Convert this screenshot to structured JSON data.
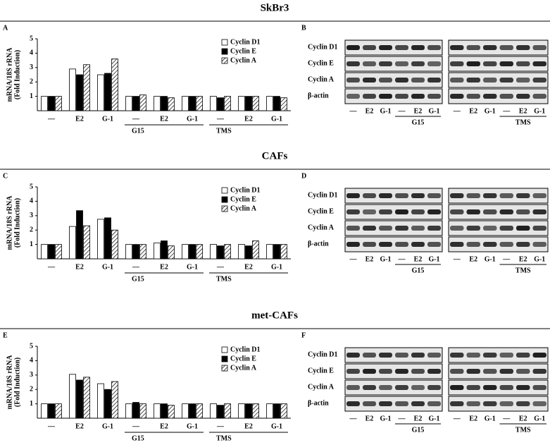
{
  "sections": [
    {
      "title": "SkBr3"
    },
    {
      "title": "CAFs"
    },
    {
      "title": "met-CAFs"
    }
  ],
  "chart_data": [
    {
      "type": "bar",
      "panel": "A",
      "ylabel": [
        "mRNA/18S rRNA",
        "(Fold Induction)"
      ],
      "categories": [
        "—",
        "E2",
        "G-1",
        "—",
        "E2",
        "G-1",
        "—",
        "E2",
        "G-1"
      ],
      "group_labels": [
        {
          "label": "G15",
          "from": 3,
          "to": 5
        },
        {
          "label": "TMS",
          "from": 6,
          "to": 8
        }
      ],
      "series": [
        {
          "name": "Cyclin D1",
          "color": "#ffffff",
          "hatch": false,
          "values": [
            1,
            2.9,
            2.5,
            1,
            1,
            1,
            1,
            1,
            1
          ]
        },
        {
          "name": "Cyclin E",
          "color": "#000000",
          "hatch": false,
          "values": [
            1,
            2.5,
            2.6,
            1,
            1,
            1,
            0.9,
            1,
            1
          ]
        },
        {
          "name": "Cyclin A",
          "color": "#ffffff",
          "hatch": true,
          "values": [
            1,
            3.2,
            3.6,
            1.1,
            0.9,
            1,
            1,
            1,
            0.9
          ]
        }
      ],
      "ylim": [
        0,
        5
      ],
      "yticks": [
        1,
        2,
        3,
        4,
        5
      ]
    },
    {
      "type": "bar",
      "panel": "C",
      "ylabel": [
        "mRNA/18S rRNA",
        "(Fold Induction)"
      ],
      "categories": [
        "—",
        "E2",
        "G-1",
        "—",
        "E2",
        "G-1",
        "—",
        "E2",
        "G-1"
      ],
      "group_labels": [
        {
          "label": "G15",
          "from": 3,
          "to": 5
        },
        {
          "label": "TMS",
          "from": 6,
          "to": 8
        }
      ],
      "series": [
        {
          "name": "Cyclin D1",
          "color": "#ffffff",
          "hatch": false,
          "values": [
            1,
            2.25,
            2.75,
            1,
            1.1,
            1,
            1,
            1,
            1
          ]
        },
        {
          "name": "Cyclin E",
          "color": "#000000",
          "hatch": false,
          "values": [
            1,
            3.35,
            2.85,
            1,
            1.25,
            1,
            0.9,
            0.9,
            1
          ]
        },
        {
          "name": "Cyclin A",
          "color": "#ffffff",
          "hatch": true,
          "values": [
            1,
            2.3,
            2.0,
            1,
            0.9,
            1,
            1,
            1.25,
            1
          ]
        }
      ],
      "ylim": [
        0,
        5
      ],
      "yticks": [
        1,
        2,
        3,
        4,
        5
      ]
    },
    {
      "type": "bar",
      "panel": "E",
      "ylabel": [
        "mRNA/18S rRNA",
        "(Fold Induction)"
      ],
      "categories": [
        "—",
        "E2",
        "G-1",
        "—",
        "E2",
        "G-1",
        "—",
        "E2",
        "G-1"
      ],
      "group_labels": [
        {
          "label": "G15",
          "from": 3,
          "to": 5
        },
        {
          "label": "TMS",
          "from": 6,
          "to": 8
        }
      ],
      "series": [
        {
          "name": "Cyclin D1",
          "color": "#ffffff",
          "hatch": false,
          "values": [
            1,
            3.05,
            2.4,
            1,
            1,
            1,
            1,
            1,
            1
          ]
        },
        {
          "name": "Cyclin E",
          "color": "#000000",
          "hatch": false,
          "values": [
            1,
            2.65,
            2.0,
            1.1,
            1,
            1,
            0.9,
            1,
            1
          ]
        },
        {
          "name": "Cyclin A",
          "color": "#ffffff",
          "hatch": true,
          "values": [
            1,
            2.85,
            2.55,
            1,
            0.9,
            1,
            1,
            1,
            1
          ]
        }
      ],
      "ylim": [
        0,
        5
      ],
      "yticks": [
        1,
        2,
        3,
        4,
        5
      ]
    }
  ],
  "blots": [
    {
      "panel": "B",
      "rows": [
        "Cyclin D1",
        "Cyclin E",
        "Cyclin A",
        "β-actin"
      ],
      "membranes": [
        {
          "lanes": [
            "—",
            "E2",
            "G-1",
            "—",
            "E2",
            "G-1"
          ],
          "group": "G15"
        },
        {
          "lanes": [
            "—",
            "E2",
            "G-1",
            "—",
            "E2",
            "G-1"
          ],
          "group": "TMS"
        }
      ]
    },
    {
      "panel": "D",
      "rows": [
        "Cyclin D1",
        "Cyclin E",
        "Cyclin A",
        "β-actin"
      ],
      "membranes": [
        {
          "lanes": [
            "—",
            "E2",
            "G-1",
            "—",
            "E2",
            "G-1"
          ],
          "group": "G15"
        },
        {
          "lanes": [
            "—",
            "E2",
            "G-1",
            "—",
            "E2",
            "G-1"
          ],
          "group": "TMS"
        }
      ]
    },
    {
      "panel": "F",
      "rows": [
        "Cyclin D1",
        "Cyclin E",
        "Cyclin A",
        "β-actin"
      ],
      "membranes": [
        {
          "lanes": [
            "—",
            "E2",
            "G-1",
            "—",
            "E2",
            "G-1"
          ],
          "group": "G15"
        },
        {
          "lanes": [
            "—",
            "E2",
            "G-1",
            "—",
            "E2",
            "G-1"
          ],
          "group": "TMS"
        }
      ]
    }
  ]
}
